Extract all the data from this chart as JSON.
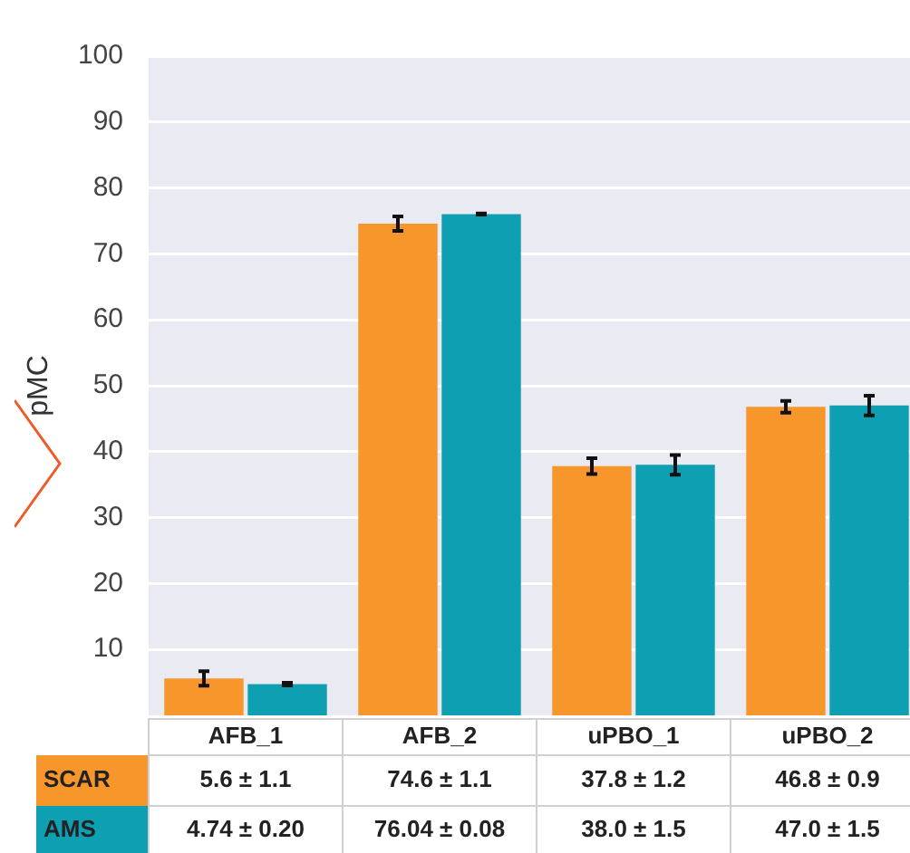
{
  "chart_data": {
    "type": "bar",
    "ylabel": "pMC",
    "categories": [
      "AFB_1",
      "AFB_2",
      "uPBO_1",
      "uPBO_2"
    ],
    "series": [
      {
        "name": "SCAR",
        "color": "#f7962a",
        "values": [
          5.6,
          74.6,
          37.8,
          46.8
        ],
        "errors": [
          1.1,
          1.1,
          1.2,
          0.9
        ],
        "value_labels": [
          "5.6 ± 1.1",
          "74.6 ± 1.1",
          "37.8 ± 1.2",
          "46.8 ± 0.9"
        ]
      },
      {
        "name": "AMS",
        "color": "#0f9fb3",
        "values": [
          4.74,
          76.04,
          38.0,
          47.0
        ],
        "errors": [
          0.2,
          0.08,
          1.5,
          1.5
        ],
        "value_labels": [
          "4.74 ± 0.20",
          "76.04 ± 0.08",
          "38.0 ± 1.5",
          "47.0 ± 1.5"
        ]
      }
    ],
    "ylim": [
      0,
      100
    ],
    "yticks": [
      10,
      20,
      30,
      40,
      50,
      60,
      70,
      80,
      90,
      100
    ],
    "grid": "y",
    "legend": false
  }
}
